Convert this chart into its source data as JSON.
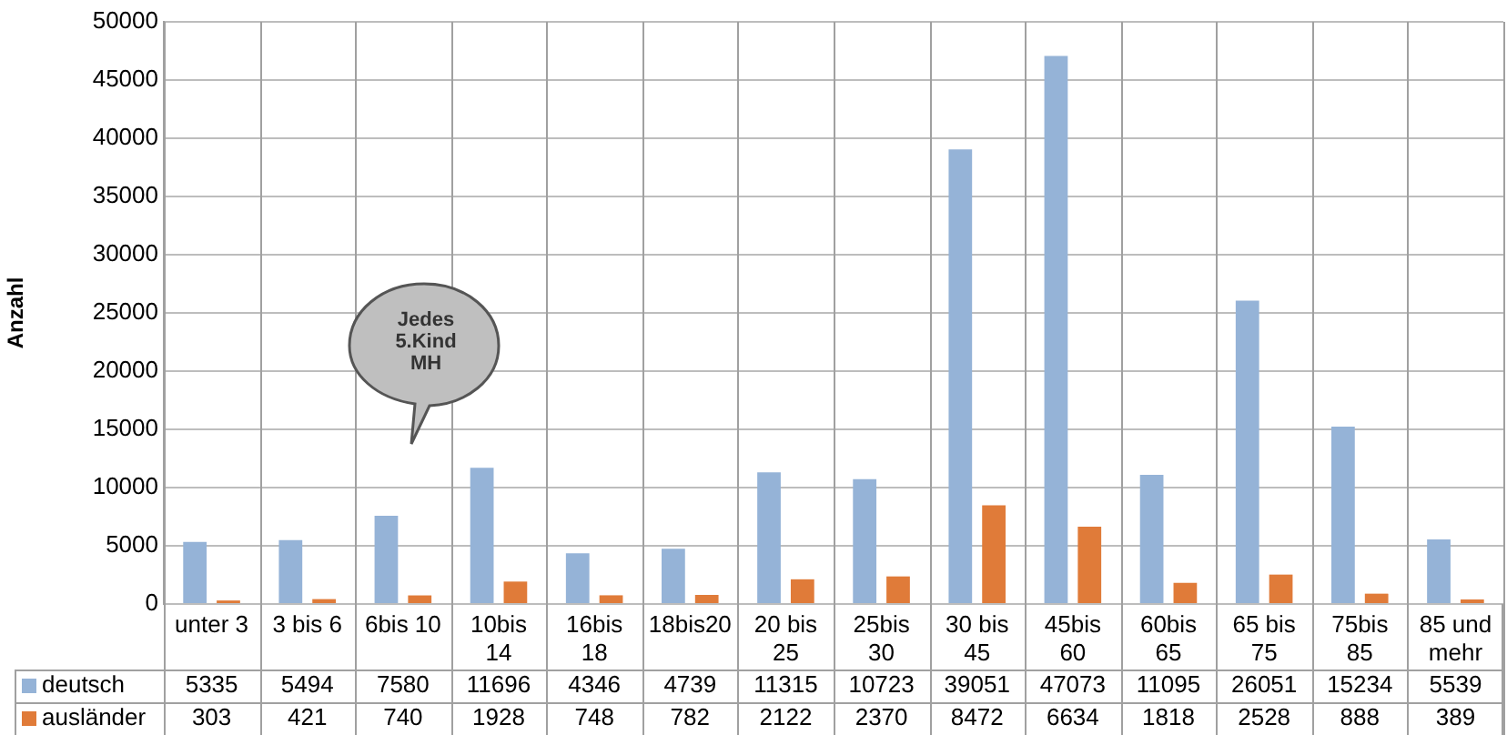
{
  "chart_data": {
    "type": "bar",
    "ylabel": "Anzahl",
    "categories": [
      "unter 3",
      "3 bis 6",
      "6bis 10",
      "10bis 14",
      "16bis 18",
      "18bis20",
      "20 bis 25",
      "25bis 30",
      "30 bis 45",
      "45bis 60",
      "60bis 65",
      "65 bis 75",
      "75bis 85",
      "85 und mehr"
    ],
    "series": [
      {
        "name": "deutsch",
        "color": "#95b3d7",
        "values": [
          5335,
          5494,
          7580,
          11696,
          4346,
          4739,
          11315,
          10723,
          39051,
          47073,
          11095,
          26051,
          15234,
          5539
        ]
      },
      {
        "name": "ausländer",
        "color": "#e07b39",
        "values": [
          303,
          421,
          740,
          1928,
          748,
          782,
          2122,
          2370,
          8472,
          6634,
          1818,
          2528,
          888,
          389
        ]
      }
    ],
    "ylim": [
      0,
      50000
    ],
    "yticks": [
      0,
      5000,
      10000,
      15000,
      20000,
      25000,
      30000,
      35000,
      40000,
      45000,
      50000
    ],
    "grid": "y",
    "data_labels": true,
    "legend": "bottom left",
    "annotations": [
      "Jedes 5.Kind MH"
    ]
  }
}
